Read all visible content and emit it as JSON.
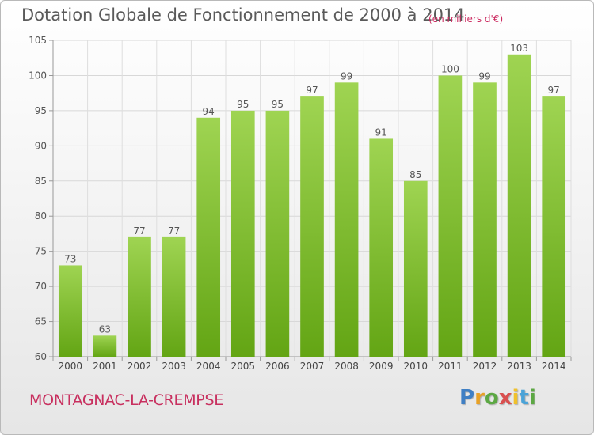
{
  "title": "Dotation Globale de Fonctionnement de 2000 à 2014",
  "subtitle": "(en milliers d'€)",
  "commune": "MONTAGNAC-LA-CREMPSE",
  "logo": {
    "letters": [
      "P",
      "r",
      "o",
      "x",
      "i",
      "t",
      "i"
    ]
  },
  "chart_data": {
    "type": "bar",
    "title": "Dotation Globale de Fonctionnement de 2000 à 2014",
    "subtitle": "(en milliers d'€)",
    "xlabel": "",
    "ylabel": "",
    "categories": [
      "2000",
      "2001",
      "2002",
      "2003",
      "2004",
      "2005",
      "2006",
      "2007",
      "2008",
      "2009",
      "2010",
      "2011",
      "2012",
      "2013",
      "2014"
    ],
    "values": [
      73,
      63,
      77,
      77,
      94,
      95,
      95,
      97,
      99,
      91,
      85,
      100,
      99,
      103,
      97
    ],
    "ylim": [
      60,
      105
    ],
    "yticks": [
      60,
      65,
      70,
      75,
      80,
      85,
      90,
      95,
      100,
      105
    ],
    "grid": true,
    "bar_color": "#7dbb2a"
  }
}
